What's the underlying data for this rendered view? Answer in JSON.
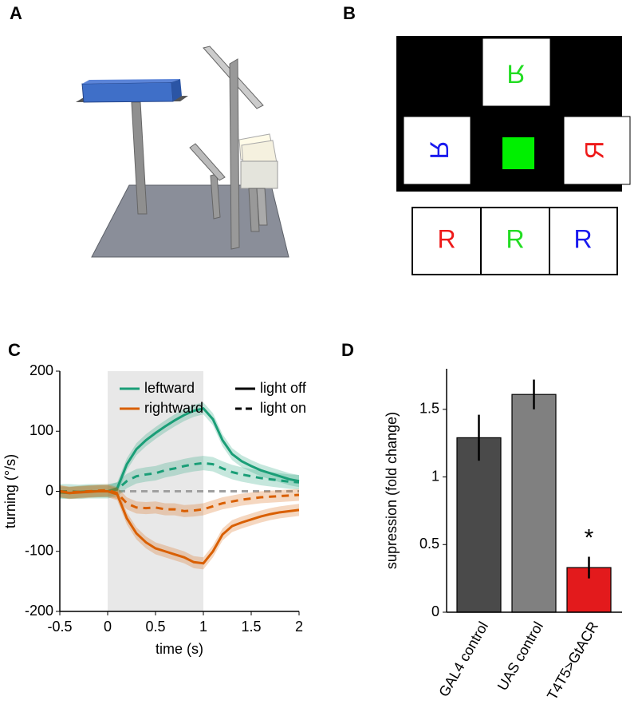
{
  "panel_a": {
    "label": "A"
  },
  "panel_b": {
    "label": "B",
    "screen_letters": [
      "R",
      "R",
      "R"
    ],
    "strip_letters": [
      "R",
      "R",
      "R"
    ]
  },
  "chart_data": [
    {
      "panel": "C",
      "type": "line",
      "xlabel": "time (s)",
      "ylabel": "turning (°/s)",
      "x": [
        -0.5,
        -0.4,
        -0.3,
        -0.2,
        -0.1,
        0,
        0.1,
        0.2,
        0.3,
        0.4,
        0.5,
        0.6,
        0.7,
        0.8,
        0.9,
        1.0,
        1.1,
        1.2,
        1.3,
        1.4,
        1.5,
        1.6,
        1.7,
        1.8,
        1.9,
        2.0
      ],
      "xlim": [
        -0.5,
        2
      ],
      "xticks": [
        -0.5,
        0,
        0.5,
        1,
        1.5,
        2
      ],
      "ylim": [
        -200,
        200
      ],
      "yticks": [
        -200,
        -100,
        0,
        100,
        200
      ],
      "highlight": [
        0,
        1
      ],
      "highlight_color": "#e8e8e8",
      "reference_line": 0,
      "reference_color": "#a0a0a0",
      "legend": {
        "colors": [
          {
            "name": "leftward",
            "color": "#1a9e77"
          },
          {
            "name": "rightward",
            "color": "#d95f02"
          }
        ],
        "styles": [
          {
            "name": "light off",
            "dash": "solid"
          },
          {
            "name": "light on",
            "dash": "dashed"
          }
        ]
      },
      "series": [
        {
          "direction": "leftward",
          "condition": "light off",
          "error": 10,
          "values": [
            -2,
            -3,
            -1,
            0,
            0,
            0,
            5,
            45,
            70,
            85,
            97,
            108,
            118,
            127,
            134,
            138,
            120,
            85,
            62,
            50,
            42,
            35,
            30,
            25,
            20,
            17
          ]
        },
        {
          "direction": "leftward",
          "condition": "light on",
          "error": 12,
          "values": [
            0,
            0,
            -1,
            0,
            0,
            0,
            3,
            17,
            25,
            28,
            30,
            35,
            38,
            42,
            45,
            47,
            45,
            38,
            32,
            28,
            25,
            22,
            20,
            18,
            16,
            15
          ]
        },
        {
          "direction": "rightward",
          "condition": "light off",
          "error": 10,
          "values": [
            0,
            -3,
            -2,
            -1,
            0,
            0,
            -5,
            -45,
            -70,
            -85,
            -95,
            -100,
            -105,
            -110,
            -118,
            -120,
            -100,
            -72,
            -58,
            -52,
            -47,
            -42,
            -38,
            -35,
            -33,
            -31
          ]
        },
        {
          "direction": "rightward",
          "condition": "light on",
          "error": 10,
          "values": [
            0,
            -2,
            -1,
            0,
            1,
            2,
            -3,
            -20,
            -27,
            -28,
            -27,
            -30,
            -30,
            -33,
            -32,
            -30,
            -25,
            -20,
            -17,
            -14,
            -12,
            -10,
            -9,
            -8,
            -7,
            -6
          ]
        }
      ]
    },
    {
      "panel": "D",
      "type": "bar",
      "ylabel": "supression (fold change)",
      "categories": [
        "GAL4 control",
        "UAS control",
        "T4T5>GtACR"
      ],
      "values": [
        1.29,
        1.61,
        0.33
      ],
      "errors": [
        0.17,
        0.11,
        0.08
      ],
      "colors": [
        "#4a4a4a",
        "#808080",
        "#e31a1c"
      ],
      "ylim": [
        0,
        1.8
      ],
      "yticks": [
        0,
        0.5,
        1,
        1.5
      ],
      "annotation": {
        "text": "*",
        "category": "T4T5>GtACR"
      }
    }
  ]
}
